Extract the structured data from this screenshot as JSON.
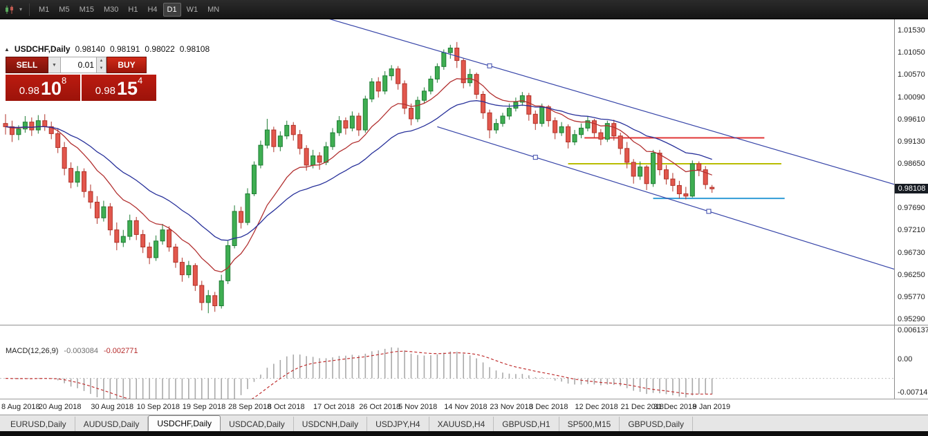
{
  "toolbar": {
    "periods": [
      {
        "label": "M1",
        "active": false
      },
      {
        "label": "M5",
        "active": false
      },
      {
        "label": "M15",
        "active": false
      },
      {
        "label": "M30",
        "active": false
      },
      {
        "label": "H1",
        "active": false
      },
      {
        "label": "H4",
        "active": false
      },
      {
        "label": "D1",
        "active": true
      },
      {
        "label": "W1",
        "active": false
      },
      {
        "label": "MN",
        "active": false
      }
    ]
  },
  "header": {
    "symbol_period": "USDCHF,Daily",
    "open": "0.98140",
    "high": "0.98191",
    "low": "0.98022",
    "close": "0.98108"
  },
  "trade_panel": {
    "sell_label": "SELL",
    "buy_label": "BUY",
    "volume": "0.01",
    "sell_price": {
      "prefix": "0.98",
      "big": "10",
      "sup": "8"
    },
    "buy_price": {
      "prefix": "0.98",
      "big": "15",
      "sup": "4"
    }
  },
  "chart_data": {
    "type": "candlestick",
    "symbol": "USDCHF",
    "timeframe": "Daily",
    "ylim": [
      0.9517,
      1.0177
    ],
    "style": {
      "up_fill": "#3fae52",
      "up_stroke": "#1e7c34",
      "down_fill": "#e2574d",
      "down_stroke": "#b03228"
    },
    "y_labels": [
      "1.01530",
      "1.01050",
      "1.00570",
      "1.00090",
      "0.99610",
      "0.99130",
      "0.98650",
      "0.97690",
      "0.97210",
      "0.96730",
      "0.96250",
      "0.95770",
      "0.95290"
    ],
    "current_price": {
      "text": "0.98108",
      "value": 0.98108
    },
    "x_labels": [
      {
        "i": 0,
        "t": "8 Aug 2018"
      },
      {
        "i": 8,
        "t": "20 Aug 2018"
      },
      {
        "i": 16,
        "t": "30 Aug 2018"
      },
      {
        "i": 23,
        "t": "10 Sep 2018"
      },
      {
        "i": 30,
        "t": "19 Sep 2018"
      },
      {
        "i": 37,
        "t": "28 Sep 2018"
      },
      {
        "i": 43,
        "t": "8 Oct 2018"
      },
      {
        "i": 50,
        "t": "17 Oct 2018"
      },
      {
        "i": 57,
        "t": "26 Oct 2018"
      },
      {
        "i": 63,
        "t": "5 Nov 2018"
      },
      {
        "i": 70,
        "t": "14 Nov 2018"
      },
      {
        "i": 77,
        "t": "23 Nov 2018"
      },
      {
        "i": 83,
        "t": "3 Dec 2018"
      },
      {
        "i": 90,
        "t": "12 Dec 2018"
      },
      {
        "i": 97,
        "t": "21 Dec 2018"
      },
      {
        "i": 102,
        "t": "31 Dec 2018"
      },
      {
        "i": 108,
        "t": "9 Jan 2019"
      }
    ],
    "candles": [
      [
        0.9952,
        0.9972,
        0.9928,
        0.9945
      ],
      [
        0.9945,
        0.9958,
        0.9912,
        0.9928
      ],
      [
        0.9928,
        0.9948,
        0.9916,
        0.994
      ],
      [
        0.994,
        0.9968,
        0.9932,
        0.9955
      ],
      [
        0.9955,
        0.9965,
        0.9925,
        0.9938
      ],
      [
        0.9938,
        0.997,
        0.993,
        0.9958
      ],
      [
        0.9958,
        0.9972,
        0.9936,
        0.9945
      ],
      [
        0.9945,
        0.9956,
        0.9918,
        0.993
      ],
      [
        0.993,
        0.9942,
        0.9888,
        0.99
      ],
      [
        0.99,
        0.9912,
        0.984,
        0.9855
      ],
      [
        0.9855,
        0.9868,
        0.9812,
        0.9825
      ],
      [
        0.9825,
        0.986,
        0.9815,
        0.9848
      ],
      [
        0.9848,
        0.9855,
        0.9792,
        0.9805
      ],
      [
        0.9805,
        0.982,
        0.9768,
        0.9782
      ],
      [
        0.9782,
        0.9795,
        0.9735,
        0.9748
      ],
      [
        0.9748,
        0.9785,
        0.974,
        0.9772
      ],
      [
        0.9772,
        0.978,
        0.971,
        0.9722
      ],
      [
        0.9722,
        0.9738,
        0.9678,
        0.9695
      ],
      [
        0.9695,
        0.9722,
        0.9685,
        0.9708
      ],
      [
        0.9708,
        0.9755,
        0.97,
        0.9742
      ],
      [
        0.9742,
        0.975,
        0.97,
        0.9712
      ],
      [
        0.9712,
        0.9722,
        0.9672,
        0.9685
      ],
      [
        0.9685,
        0.9695,
        0.9648,
        0.9662
      ],
      [
        0.9662,
        0.971,
        0.9655,
        0.9698
      ],
      [
        0.9698,
        0.9735,
        0.969,
        0.9722
      ],
      [
        0.9722,
        0.973,
        0.9675,
        0.9685
      ],
      [
        0.9685,
        0.9692,
        0.964,
        0.9652
      ],
      [
        0.9652,
        0.9662,
        0.961,
        0.9625
      ],
      [
        0.9625,
        0.9655,
        0.9618,
        0.9645
      ],
      [
        0.9645,
        0.965,
        0.959,
        0.9602
      ],
      [
        0.9602,
        0.9612,
        0.9548,
        0.9565
      ],
      [
        0.9565,
        0.9592,
        0.9542,
        0.958
      ],
      [
        0.958,
        0.9588,
        0.9545,
        0.9558
      ],
      [
        0.9558,
        0.9625,
        0.9552,
        0.9612
      ],
      [
        0.9612,
        0.9698,
        0.9605,
        0.9688
      ],
      [
        0.9688,
        0.9775,
        0.9682,
        0.9762
      ],
      [
        0.9762,
        0.9772,
        0.9725,
        0.9738
      ],
      [
        0.9738,
        0.9812,
        0.9732,
        0.98
      ],
      [
        0.98,
        0.987,
        0.9795,
        0.9862
      ],
      [
        0.9862,
        0.9915,
        0.9855,
        0.9905
      ],
      [
        0.9905,
        0.9962,
        0.9898,
        0.9938
      ],
      [
        0.9938,
        0.9945,
        0.989,
        0.9902
      ],
      [
        0.9902,
        0.9935,
        0.9892,
        0.9925
      ],
      [
        0.9925,
        0.9958,
        0.9918,
        0.9948
      ],
      [
        0.9948,
        0.9955,
        0.9915,
        0.9928
      ],
      [
        0.9928,
        0.9938,
        0.9885,
        0.9898
      ],
      [
        0.9898,
        0.9905,
        0.985,
        0.9862
      ],
      [
        0.9862,
        0.9895,
        0.9855,
        0.9882
      ],
      [
        0.9882,
        0.989,
        0.9852,
        0.9868
      ],
      [
        0.9868,
        0.9912,
        0.9862,
        0.9902
      ],
      [
        0.9902,
        0.9942,
        0.9895,
        0.9932
      ],
      [
        0.9932,
        0.9968,
        0.9925,
        0.9958
      ],
      [
        0.9958,
        0.9965,
        0.9928,
        0.9942
      ],
      [
        0.9942,
        0.9978,
        0.9935,
        0.9968
      ],
      [
        0.9968,
        0.9975,
        0.9925,
        0.9938
      ],
      [
        0.9938,
        1.0012,
        0.9932,
        1.0005
      ],
      [
        1.0005,
        1.005,
        0.9998,
        1.0042
      ],
      [
        1.0042,
        1.0052,
        1.0008,
        1.0022
      ],
      [
        1.0022,
        1.0065,
        1.0015,
        1.0055
      ],
      [
        1.0055,
        1.0078,
        1.0045,
        1.007
      ],
      [
        1.007,
        1.0076,
        1.0025,
        1.0038
      ],
      [
        1.0038,
        1.0045,
        0.9972,
        0.9985
      ],
      [
        0.9985,
        0.9995,
        0.9948,
        0.9962
      ],
      [
        0.9962,
        1.001,
        0.9955,
        1.0002
      ],
      [
        1.0002,
        1.003,
        0.9995,
        1.0022
      ],
      [
        1.0022,
        1.0055,
        1.0015,
        1.0048
      ],
      [
        1.0048,
        1.0082,
        1.004,
        1.0075
      ],
      [
        1.0075,
        1.0112,
        1.0068,
        1.0105
      ],
      [
        1.0105,
        1.0122,
        1.0092,
        1.0115
      ],
      [
        1.0115,
        1.0128,
        1.0072,
        1.0088
      ],
      [
        1.0088,
        1.0092,
        1.0028,
        1.004
      ],
      [
        1.004,
        1.007,
        1.0032,
        1.0058
      ],
      [
        1.0058,
        1.0062,
        1.0005,
        1.0015
      ],
      [
        1.0015,
        1.0022,
        0.9962,
        0.9975
      ],
      [
        0.9975,
        0.9982,
        0.992,
        0.9938
      ],
      [
        0.9938,
        0.9962,
        0.993,
        0.9952
      ],
      [
        0.9952,
        0.9975,
        0.9945,
        0.9968
      ],
      [
        0.9968,
        0.9995,
        0.996,
        0.9985
      ],
      [
        0.9985,
        1.0008,
        0.9978,
        0.9998
      ],
      [
        0.9998,
        1.002,
        0.999,
        1.0012
      ],
      [
        1.0012,
        1.0018,
        0.9958,
        0.9972
      ],
      [
        0.9972,
        0.998,
        0.9938,
        0.9952
      ],
      [
        0.9952,
        0.9995,
        0.9945,
        0.9988
      ],
      [
        0.9988,
        0.9992,
        0.9945,
        0.9958
      ],
      [
        0.9958,
        0.9965,
        0.9918,
        0.9932
      ],
      [
        0.9932,
        0.9955,
        0.9925,
        0.9945
      ],
      [
        0.9945,
        0.995,
        0.9898,
        0.9912
      ],
      [
        0.9912,
        0.9938,
        0.9905,
        0.9928
      ],
      [
        0.9928,
        0.9952,
        0.992,
        0.9942
      ],
      [
        0.9942,
        0.9968,
        0.9935,
        0.9958
      ],
      [
        0.9958,
        0.9962,
        0.9922,
        0.9932
      ],
      [
        0.9932,
        0.994,
        0.9905,
        0.9918
      ],
      [
        0.9918,
        0.9958,
        0.9912,
        0.9952
      ],
      [
        0.9952,
        0.996,
        0.9915,
        0.9925
      ],
      [
        0.9925,
        0.9932,
        0.9885,
        0.9898
      ],
      [
        0.9898,
        0.9912,
        0.9855,
        0.9868
      ],
      [
        0.9868,
        0.9875,
        0.9822,
        0.9838
      ],
      [
        0.9838,
        0.987,
        0.983,
        0.9858
      ],
      [
        0.9858,
        0.9862,
        0.9808,
        0.9822
      ],
      [
        0.9822,
        0.9895,
        0.9815,
        0.9888
      ],
      [
        0.9888,
        0.9895,
        0.984,
        0.9852
      ],
      [
        0.9852,
        0.9862,
        0.982,
        0.9832
      ],
      [
        0.9832,
        0.9845,
        0.9805,
        0.9818
      ],
      [
        0.9818,
        0.9828,
        0.979,
        0.98
      ],
      [
        0.98,
        0.9815,
        0.9788,
        0.9795
      ],
      [
        0.9795,
        0.9872,
        0.9792,
        0.9865
      ],
      [
        0.9865,
        0.987,
        0.9838,
        0.9852
      ],
      [
        0.9852,
        0.986,
        0.981,
        0.982
      ],
      [
        0.9814,
        0.98191,
        0.98022,
        0.98108
      ]
    ],
    "overlays": {
      "ma_fast": {
        "type": "ema",
        "period": 12,
        "color": "#b23030"
      },
      "ma_slow": {
        "type": "ema",
        "period": 26,
        "color": "#27309a"
      },
      "trendlines": [
        {
          "name": "descending-channel-upper",
          "i1": 49,
          "p1": 1.018,
          "i2": 142,
          "p2": 0.9795,
          "color": "#3644a8",
          "handles": [
            74
          ]
        },
        {
          "name": "descending-channel-lower",
          "i1": 66,
          "p1": 0.9945,
          "i2": 142,
          "p2": 0.961,
          "color": "#3644a8",
          "handles": [
            81,
            107.5
          ]
        }
      ],
      "hlines": [
        {
          "name": "resistance-line-red",
          "price": 0.9921,
          "i1": 88.5,
          "i2": 116,
          "color": "#e03636"
        },
        {
          "name": "support-line-yellow",
          "price": 0.9865,
          "i1": 86,
          "i2": 118.6,
          "color": "#b8bc00"
        },
        {
          "name": "support-line-blue",
          "price": 0.979,
          "i1": 99,
          "i2": 119.1,
          "color": "#2f9bd6"
        }
      ]
    },
    "indicators": {
      "macd": {
        "title": "MACD(12,26,9)",
        "fast": 12,
        "slow": 26,
        "signal": 9,
        "value_main": "-0.003084",
        "value_signal": "-0.002771",
        "ylim": [
          -0.00847,
          0.00717
        ],
        "axis_labels": [
          {
            "v": 0.006137,
            "t": "0.006137"
          },
          {
            "v": 0,
            "t": "0.00"
          },
          {
            "v": -0.007142,
            "t": "-0.007142"
          }
        ],
        "histogram_color": "#a9a9a9",
        "signal_color": "#c03030",
        "zero_color": "#bdbdbd"
      }
    }
  },
  "tabs": [
    {
      "label": "EURUSD,Daily",
      "active": false
    },
    {
      "label": "AUDUSD,Daily",
      "active": false
    },
    {
      "label": "USDCHF,Daily",
      "active": true
    },
    {
      "label": "USDCAD,Daily",
      "active": false
    },
    {
      "label": "USDCNH,Daily",
      "active": false
    },
    {
      "label": "USDJPY,H4",
      "active": false
    },
    {
      "label": "XAUUSD,H4",
      "active": false
    },
    {
      "label": "GBPUSD,H1",
      "active": false
    },
    {
      "label": "SP500,M15",
      "active": false
    },
    {
      "label": "GBPUSD,Daily",
      "active": false
    }
  ]
}
